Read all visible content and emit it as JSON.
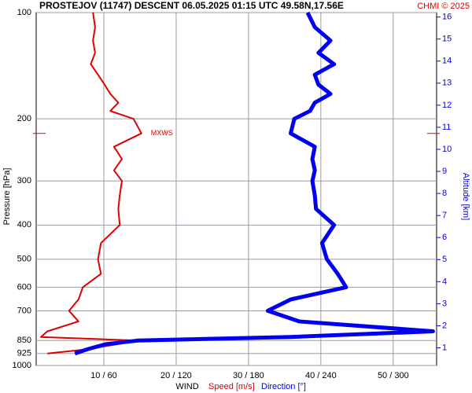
{
  "chart_data": {
    "type": "line",
    "title": "PROSTEJOV (11747)   DESCENT   06.05.2025 01:15 UTC  49.58N,17.56E",
    "credit": "CHMI © 2025",
    "ylabel": "Pressure [hPa]",
    "y2label": "Altitude [km]",
    "xlabel": "WIND",
    "log_y": true,
    "grid": true,
    "ylim": [
      1000,
      100
    ],
    "yticks": [
      100,
      200,
      300,
      400,
      500,
      600,
      700,
      850,
      925,
      1000
    ],
    "y2lim": [
      0.2,
      16.2
    ],
    "y2ticks": [
      1,
      2,
      3,
      4,
      5,
      6,
      7,
      8,
      9,
      10,
      11,
      12,
      13,
      14,
      15,
      16
    ],
    "xlim": [
      0.65,
      56
    ],
    "x2lim": [
      3.9,
      336
    ],
    "xticks": [
      {
        "value": 10,
        "label": "10 / 60"
      },
      {
        "value": 20,
        "label": "20 / 120"
      },
      {
        "value": 30,
        "label": "30 / 180"
      },
      {
        "value": 40,
        "label": "40 / 240"
      },
      {
        "value": 50,
        "label": "50 / 300"
      }
    ],
    "pressure": [
      100,
      110,
      120,
      130,
      140,
      150,
      160,
      170,
      180,
      190,
      200,
      220,
      240,
      260,
      280,
      300,
      330,
      360,
      400,
      450,
      500,
      550,
      600,
      650,
      700,
      750,
      800,
      830,
      850,
      870,
      900,
      925
    ],
    "series": [
      {
        "name": "Speed [m/s]",
        "color": "#e00000",
        "values": [
          8.5,
          8.8,
          8.5,
          8.8,
          8.2,
          9.2,
          10.1,
          10.9,
          12.0,
          10.9,
          14.1,
          15.2,
          11.4,
          12.5,
          11.4,
          12.5,
          12.2,
          12.0,
          12.2,
          9.6,
          9.2,
          9.6,
          7.1,
          6.5,
          5.2,
          6.5,
          2.2,
          1.3,
          14.7,
          12.0,
          7.6,
          2.2
        ]
      },
      {
        "name": "Direction [°]",
        "color": "#0000ee",
        "axis": "x2",
        "values": [
          229,
          235,
          248,
          238,
          251,
          235,
          238,
          248,
          235,
          231,
          218,
          215,
          235,
          233,
          235,
          233,
          235,
          236,
          251,
          241,
          245,
          254,
          261,
          215,
          196,
          222,
          333,
          215,
          88,
          62,
          46,
          36
        ]
      }
    ],
    "annotations": [
      {
        "text": "MXWS",
        "pressure": 220,
        "series": 0
      }
    ]
  }
}
